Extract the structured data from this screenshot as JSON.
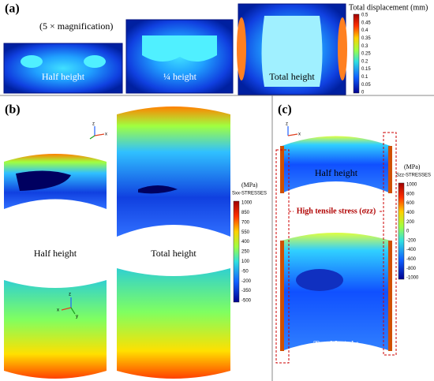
{
  "panel_a": {
    "label": "(a)",
    "note": "(5 × magnification)",
    "colorbar": {
      "title": "Total displacement (mm)",
      "ticks": [
        "0.5",
        "0.45",
        "0.4",
        "0.35",
        "0.3",
        "0.25",
        "0.2",
        "0.15",
        "0.1",
        "0.05",
        "0"
      ]
    },
    "specimens": [
      "Half height",
      "¼ height",
      "Total height"
    ]
  },
  "panel_b": {
    "label": "(b)",
    "colorbar": {
      "unit": "(MPa)",
      "title": "Sxx-STRESSES",
      "ticks": [
        "1000",
        "850",
        "700",
        "550",
        "400",
        "250",
        "100",
        "-50",
        "-200",
        "-350",
        "-500"
      ]
    },
    "specimens": [
      "Half height",
      "Total height"
    ],
    "axes_top": [
      "z",
      "x"
    ],
    "axes_bottom": [
      "z",
      "x",
      "y"
    ]
  },
  "panel_c": {
    "label": "(c)",
    "colorbar": {
      "unit": "(MPa)",
      "title": "Szz-STRESSES",
      "ticks": [
        "1000",
        "800",
        "600",
        "400",
        "200",
        "0",
        "-200",
        "-400",
        "-600",
        "-800",
        "-1000"
      ]
    },
    "annotation": "High tensile stress (σzz)",
    "specimens": [
      "Half height",
      "Total height"
    ],
    "axes": [
      "z",
      "x"
    ]
  }
}
